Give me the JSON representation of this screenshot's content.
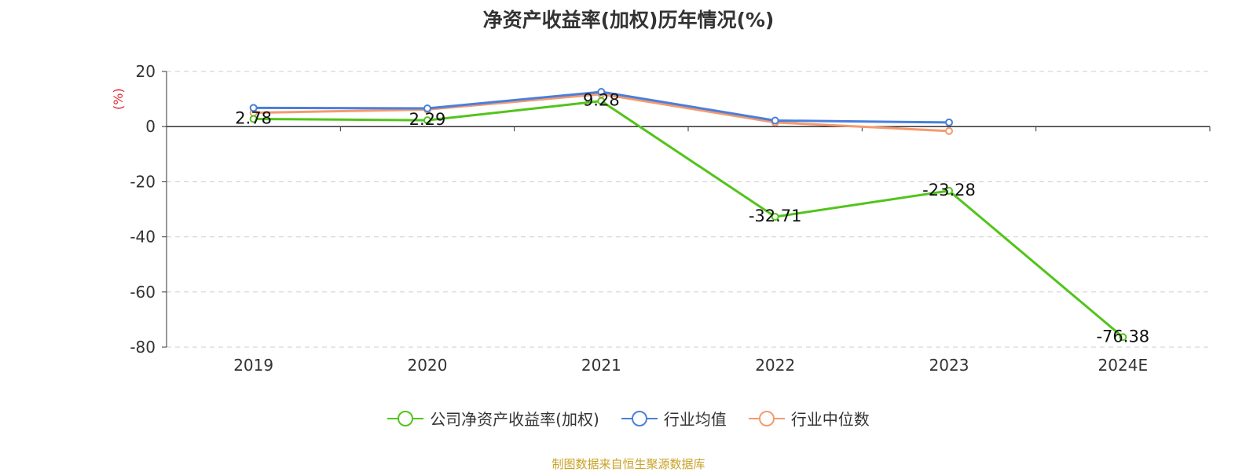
{
  "chart_data": {
    "type": "line",
    "title": "净资产收益率(加权)历年情况(%)",
    "ylabel": "(%)",
    "categories": [
      "2019",
      "2020",
      "2021",
      "2022",
      "2023",
      "2024E"
    ],
    "ylim": [
      -80,
      20
    ],
    "yticks": [
      20,
      0,
      -20,
      -40,
      -60,
      -80
    ],
    "grid": true,
    "legend_position": "bottom-center",
    "series": [
      {
        "name": "公司净资产收益率(加权)",
        "color": "#52c41a",
        "values": [
          2.78,
          2.29,
          9.28,
          -32.71,
          -23.28,
          -76.38
        ],
        "labels": [
          "2.78",
          "2.29",
          "9.28",
          "-32.71",
          "-23.28",
          "-76.38"
        ]
      },
      {
        "name": "行业均值",
        "color": "#4a7fdc",
        "values": [
          6.8,
          6.6,
          12.6,
          2.2,
          1.5,
          null
        ]
      },
      {
        "name": "行业中位数",
        "color": "#f59a6e",
        "values": [
          5.0,
          6.2,
          11.8,
          1.5,
          -1.6,
          null
        ]
      }
    ]
  },
  "source": "制图数据来自恒生聚源数据库"
}
